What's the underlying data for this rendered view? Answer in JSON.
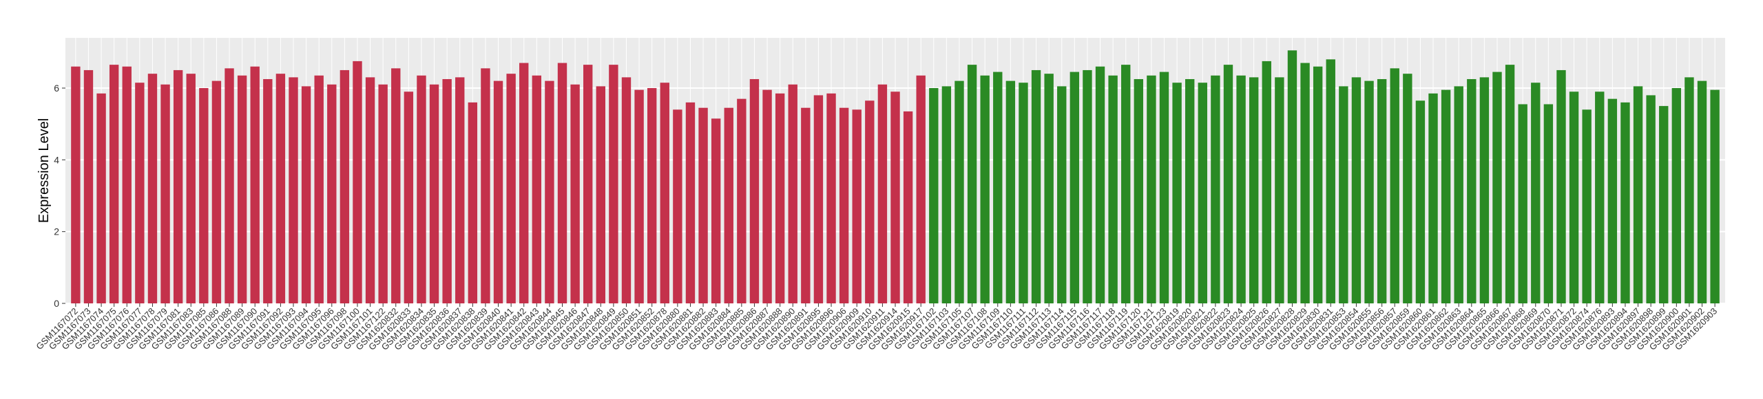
{
  "chart_data": {
    "type": "bar",
    "ylabel": "Expression Level",
    "ylim": [
      0,
      7.4
    ],
    "yticks": [
      0,
      2,
      4,
      6
    ],
    "grid": true,
    "groups": [
      {
        "color": "#c4314b",
        "categories": [
          "GSM1167072",
          "GSM1167073",
          "GSM1167074",
          "GSM1167075",
          "GSM1167076",
          "GSM1167077",
          "GSM1167078",
          "GSM1167079",
          "GSM1167081",
          "GSM1167083",
          "GSM1167085",
          "GSM1167086",
          "GSM1167088",
          "GSM1167089",
          "GSM1167090",
          "GSM1167091",
          "GSM1167092",
          "GSM1167093",
          "GSM1167094",
          "GSM1167095",
          "GSM1167096",
          "GSM1167098",
          "GSM1167100",
          "GSM1167101",
          "GSM1167122",
          "GSM1620832",
          "GSM1620833",
          "GSM1620834",
          "GSM1620835",
          "GSM1620836",
          "GSM1620837",
          "GSM1620838",
          "GSM1620839",
          "GSM1620840",
          "GSM1620841",
          "GSM1620842",
          "GSM1620843",
          "GSM1620844",
          "GSM1620845",
          "GSM1620846",
          "GSM1620847",
          "GSM1620848",
          "GSM1620849",
          "GSM1620850",
          "GSM1620851",
          "GSM1620852",
          "GSM1620878",
          "GSM1620880",
          "GSM1620881",
          "GSM1620882",
          "GSM1620883",
          "GSM1620884",
          "GSM1620885",
          "GSM1620886",
          "GSM1620887",
          "GSM1620888",
          "GSM1620890",
          "GSM1620891",
          "GSM1620895",
          "GSM1620896",
          "GSM1620906",
          "GSM1620909",
          "GSM1620910",
          "GSM1620911",
          "GSM1620914",
          "GSM1620915",
          "GSM1620917"
        ],
        "values": [
          6.6,
          6.5,
          5.85,
          6.65,
          6.6,
          6.15,
          6.4,
          6.1,
          6.5,
          6.4,
          6.0,
          6.2,
          6.55,
          6.35,
          6.6,
          6.25,
          6.4,
          6.3,
          6.05,
          6.35,
          6.1,
          6.5,
          6.75,
          6.3,
          6.1,
          6.55,
          5.9,
          6.35,
          6.1,
          6.25,
          6.3,
          5.6,
          6.55,
          6.2,
          6.4,
          6.7,
          6.35,
          6.2,
          6.7,
          6.1,
          6.65,
          6.05,
          6.65,
          6.3,
          5.95,
          6.0,
          6.15,
          5.4,
          5.6,
          5.45,
          5.15,
          5.45,
          5.7,
          6.25,
          5.95,
          5.85,
          6.1,
          5.45,
          5.8,
          5.85,
          5.45,
          5.4,
          5.65,
          6.1,
          5.9,
          5.35,
          6.35
        ]
      },
      {
        "color": "#2a8a24",
        "categories": [
          "GSM1167102",
          "GSM1167103",
          "GSM1167105",
          "GSM1167107",
          "GSM1167108",
          "GSM1167109",
          "GSM1167110",
          "GSM1167111",
          "GSM1167112",
          "GSM1167113",
          "GSM1167114",
          "GSM1167115",
          "GSM1167116",
          "GSM1167117",
          "GSM1167118",
          "GSM1167119",
          "GSM1167120",
          "GSM1167121",
          "GSM1167123",
          "GSM1620819",
          "GSM1620820",
          "GSM1620821",
          "GSM1620822",
          "GSM1620823",
          "GSM1620824",
          "GSM1620825",
          "GSM1620826",
          "GSM1620827",
          "GSM1620828",
          "GSM1620829",
          "GSM1620830",
          "GSM1620831",
          "GSM1620853",
          "GSM1620854",
          "GSM1620855",
          "GSM1620856",
          "GSM1620857",
          "GSM1620859",
          "GSM1620860",
          "GSM1620861",
          "GSM1620862",
          "GSM1620863",
          "GSM1620864",
          "GSM1620865",
          "GSM1620866",
          "GSM1620867",
          "GSM1620868",
          "GSM1620869",
          "GSM1620870",
          "GSM1620871",
          "GSM1620872",
          "GSM1620874",
          "GSM1620876",
          "GSM1620893",
          "GSM1620894",
          "GSM1620897",
          "GSM1620898",
          "GSM1620899",
          "GSM1620900",
          "GSM1620901",
          "GSM1620902",
          "GSM1620903"
        ],
        "values": [
          6.0,
          6.05,
          6.2,
          6.65,
          6.35,
          6.45,
          6.2,
          6.15,
          6.5,
          6.4,
          6.05,
          6.45,
          6.5,
          6.6,
          6.35,
          6.65,
          6.25,
          6.35,
          6.45,
          6.15,
          6.25,
          6.15,
          6.35,
          6.65,
          6.35,
          6.3,
          6.75,
          6.3,
          7.05,
          6.7,
          6.6,
          6.8,
          6.05,
          6.3,
          6.2,
          6.25,
          6.55,
          6.4,
          5.65,
          5.85,
          5.95,
          6.05,
          6.25,
          6.3,
          6.45,
          6.65,
          5.55,
          6.15,
          5.55,
          6.5,
          5.9,
          5.4,
          5.9,
          5.7,
          5.6,
          6.05,
          5.8,
          5.5,
          6.0,
          6.3,
          6.2,
          5.95
        ]
      }
    ]
  }
}
